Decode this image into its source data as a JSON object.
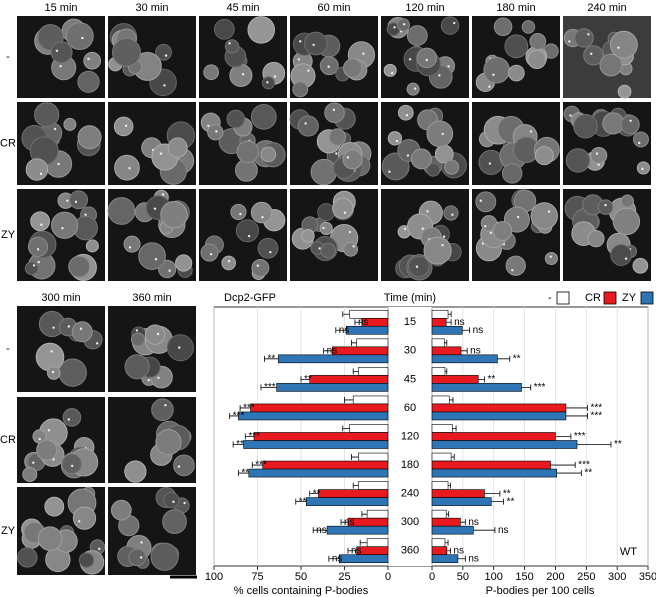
{
  "images": {
    "top_columns": [
      "15 min",
      "30 min",
      "45 min",
      "60 min",
      "120 min",
      "180 min",
      "240 min"
    ],
    "bottom_columns": [
      "300 min",
      "360 min"
    ],
    "rows": [
      "-",
      "CR",
      "ZY"
    ]
  },
  "chart_data": {
    "type": "bar",
    "orientation": "horizontal",
    "title": "Dcp2-GFP",
    "center_title": "Time (min)",
    "annotation": "WT",
    "categories": [
      "15",
      "30",
      "45",
      "60",
      "120",
      "180",
      "240",
      "300",
      "360"
    ],
    "legend": "top-right",
    "grid": true,
    "panels": [
      {
        "xlabel": "% cells containing P-bodies",
        "xlim": [
          100,
          0
        ],
        "xticks": [
          100,
          75,
          50,
          25,
          0
        ],
        "series": [
          {
            "name": "-",
            "color": "#ffffff",
            "values": [
              22,
              18,
              17,
              20,
              22,
              17,
              17,
              12,
              12
            ],
            "errors": [
              4,
              3,
              3,
              5,
              4,
              4,
              3,
              3,
              4
            ]
          },
          {
            "name": "CR",
            "color": "#e8191f",
            "values": [
              15,
              32,
              45,
              79,
              77,
              72,
              40,
              23,
              18
            ],
            "errors": [
              4,
              5,
              5,
              6,
              5,
              6,
              5,
              4,
              5
            ],
            "labels": [
              "ns",
              "ns",
              "**",
              "***",
              "***",
              "***",
              "**",
              "ns",
              "ns"
            ]
          },
          {
            "name": "ZY",
            "color": "#2e75b6",
            "values": [
              24,
              63,
              64,
              86,
              83,
              80,
              47,
              35,
              28
            ],
            "errors": [
              6,
              8,
              9,
              5,
              6,
              6,
              6,
              8,
              6
            ],
            "labels": [
              "ns",
              "**",
              "***",
              "***",
              "**",
              "**",
              "**",
              "ns",
              "ns"
            ]
          }
        ]
      },
      {
        "xlabel": "P-bodies per 100 cells",
        "xlim": [
          0,
          350
        ],
        "xticks": [
          0,
          50,
          100,
          150,
          200,
          250,
          300,
          350
        ],
        "series": [
          {
            "name": "-",
            "color": "#ffffff",
            "values": [
              26,
              20,
              21,
              28,
              33,
              31,
              26,
              23,
              21
            ],
            "errors": [
              5,
              4,
              3,
              6,
              6,
              5,
              4,
              4,
              5
            ]
          },
          {
            "name": "CR",
            "color": "#e8191f",
            "values": [
              23,
              47,
              75,
              217,
              200,
              192,
              85,
              46,
              24
            ],
            "errors": [
              8,
              10,
              10,
              35,
              25,
              40,
              25,
              8,
              6
            ],
            "labels": [
              "ns",
              "ns",
              "**",
              "***",
              "***",
              "***",
              "**",
              "ns",
              "ns"
            ]
          },
          {
            "name": "ZY",
            "color": "#2e75b6",
            "values": [
              49,
              106,
              145,
              217,
              235,
              202,
              96,
              67,
              42
            ],
            "errors": [
              12,
              20,
              15,
              35,
              55,
              40,
              20,
              35,
              12
            ],
            "labels": [
              "ns",
              "**",
              "***",
              "***",
              "**",
              "**",
              "**",
              "ns",
              "ns"
            ]
          }
        ]
      }
    ]
  }
}
